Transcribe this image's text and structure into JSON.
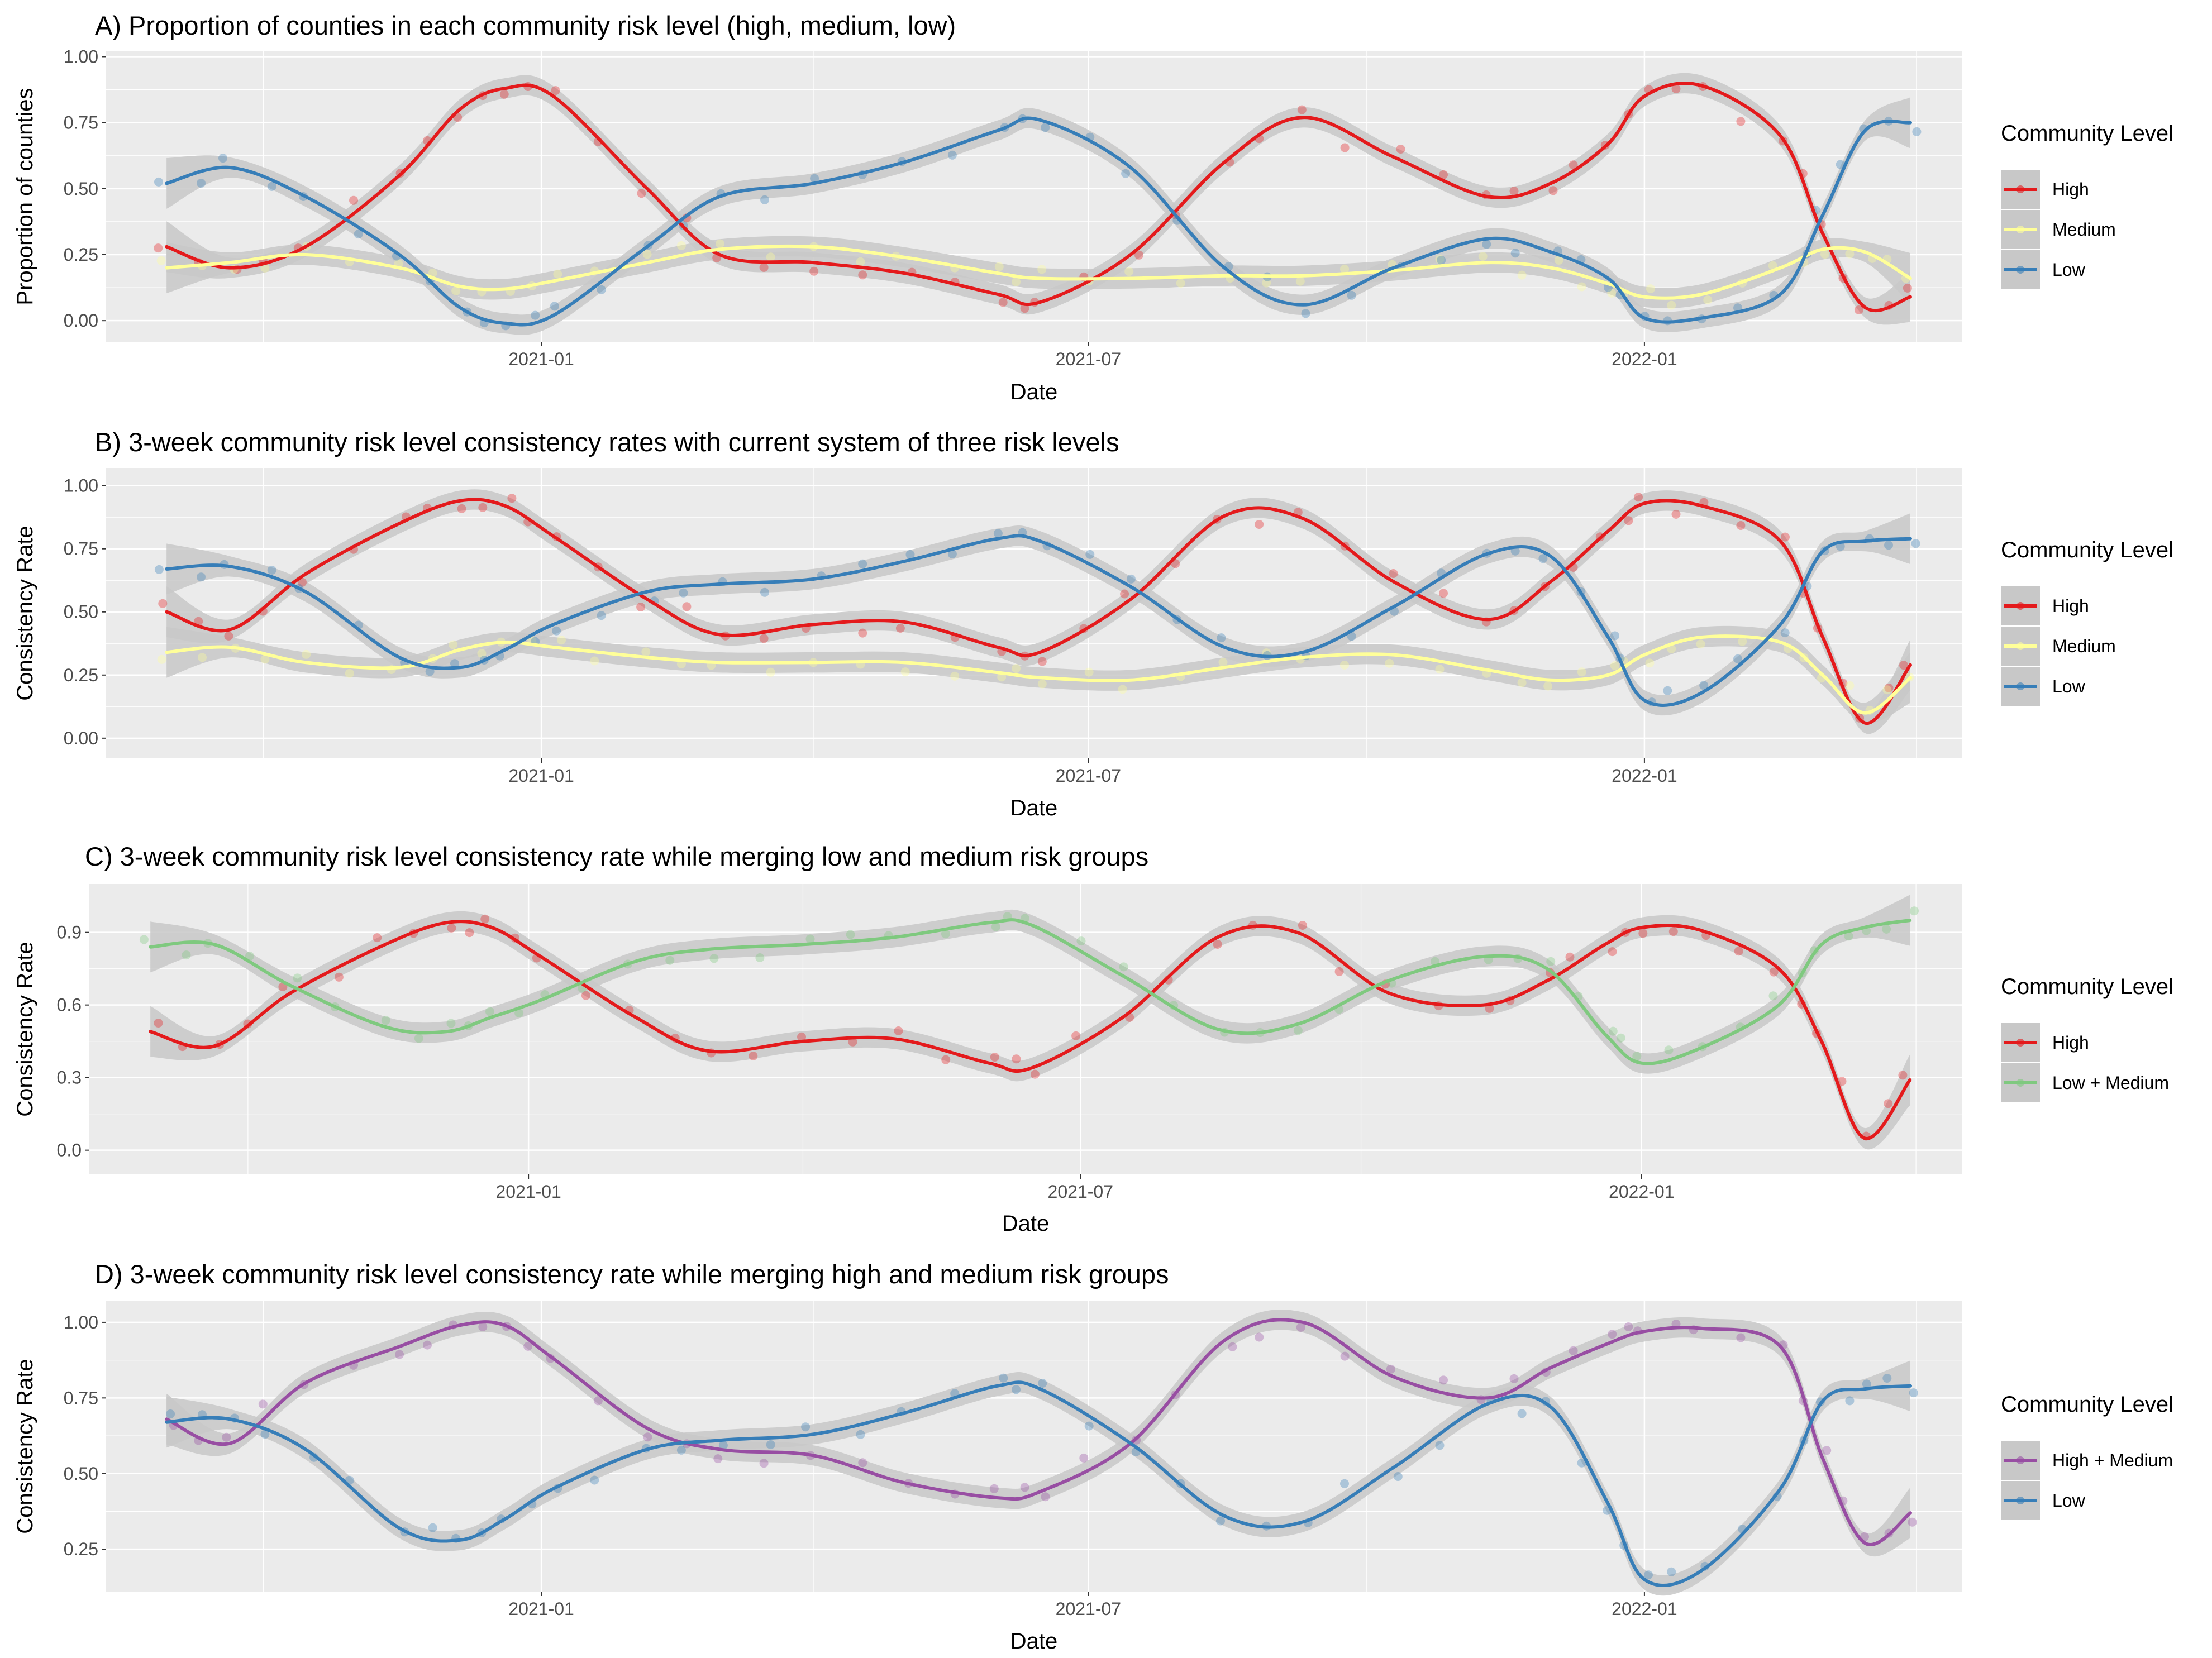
{
  "colors": {
    "High": "#e41a1c",
    "Medium": "#ffff99",
    "Low": "#377eb8",
    "Low + Medium": "#7fc97f",
    "High + Medium": "#984ea3",
    "panel_bg": "#ebebeb",
    "grid": "#ffffff",
    "band": "#c8c8c8"
  },
  "chart_data": [
    {
      "type": "line",
      "title": "A) Proportion of counties in each community risk level (high, medium, low)",
      "xlabel": "Date",
      "ylabel": "Proportion of counties",
      "x_ticks": [
        "2021-01",
        "2021-07",
        "2022-01"
      ],
      "y_ticks": [
        "0.00",
        "0.25",
        "0.50",
        "0.75",
        "1.00"
      ],
      "ylim": [
        -0.08,
        1.02
      ],
      "xlim": [
        "2020-08-10",
        "2022-04-16"
      ],
      "grid": true,
      "legend_title": "Community Level",
      "legend_position": "right",
      "x": [
        "2020-08-30",
        "2020-09-20",
        "2020-10-15",
        "2020-11-15",
        "2020-12-05",
        "2020-12-20",
        "2021-01-05",
        "2021-02-05",
        "2021-03-01",
        "2021-04-01",
        "2021-05-01",
        "2021-06-01",
        "2021-06-15",
        "2021-07-15",
        "2021-08-15",
        "2021-09-10",
        "2021-10-10",
        "2021-11-10",
        "2021-12-01",
        "2021-12-20",
        "2022-01-01",
        "2022-01-20",
        "2022-02-15",
        "2022-03-01",
        "2022-03-15",
        "2022-03-30"
      ],
      "series": [
        {
          "name": "High",
          "values": [
            0.28,
            0.2,
            0.28,
            0.55,
            0.8,
            0.88,
            0.85,
            0.5,
            0.25,
            0.22,
            0.18,
            0.1,
            0.07,
            0.25,
            0.6,
            0.77,
            0.62,
            0.47,
            0.52,
            0.67,
            0.85,
            0.89,
            0.7,
            0.33,
            0.05,
            0.09
          ]
        },
        {
          "name": "Medium",
          "values": [
            0.2,
            0.22,
            0.25,
            0.2,
            0.13,
            0.12,
            0.15,
            0.22,
            0.27,
            0.28,
            0.24,
            0.18,
            0.16,
            0.16,
            0.17,
            0.17,
            0.19,
            0.22,
            0.2,
            0.14,
            0.09,
            0.1,
            0.2,
            0.27,
            0.26,
            0.16
          ]
        },
        {
          "name": "Low",
          "values": [
            0.52,
            0.58,
            0.47,
            0.25,
            0.05,
            -0.01,
            0.02,
            0.28,
            0.47,
            0.52,
            0.6,
            0.72,
            0.76,
            0.58,
            0.2,
            0.06,
            0.2,
            0.31,
            0.26,
            0.16,
            0.01,
            0.01,
            0.1,
            0.4,
            0.72,
            0.75
          ]
        }
      ]
    },
    {
      "type": "line",
      "title": "B) 3-week community risk level consistency rates with current system of three risk levels",
      "xlabel": "Date",
      "ylabel": "Consistency Rate",
      "x_ticks": [
        "2021-01",
        "2021-07",
        "2022-01"
      ],
      "y_ticks": [
        "0.00",
        "0.25",
        "0.50",
        "0.75",
        "1.00"
      ],
      "ylim": [
        -0.08,
        1.07
      ],
      "xlim": [
        "2020-08-10",
        "2022-04-16"
      ],
      "grid": true,
      "legend_title": "Community Level",
      "legend_position": "right",
      "x": [
        "2020-08-30",
        "2020-09-20",
        "2020-10-15",
        "2020-11-15",
        "2020-12-05",
        "2020-12-20",
        "2021-01-05",
        "2021-02-05",
        "2021-03-01",
        "2021-04-01",
        "2021-05-01",
        "2021-06-01",
        "2021-06-15",
        "2021-07-15",
        "2021-08-15",
        "2021-09-10",
        "2021-10-10",
        "2021-11-10",
        "2021-12-01",
        "2021-12-20",
        "2022-01-01",
        "2022-01-20",
        "2022-02-15",
        "2022-03-01",
        "2022-03-15",
        "2022-03-30"
      ],
      "series": [
        {
          "name": "High",
          "values": [
            0.5,
            0.43,
            0.65,
            0.85,
            0.94,
            0.92,
            0.8,
            0.55,
            0.41,
            0.45,
            0.46,
            0.36,
            0.34,
            0.55,
            0.88,
            0.87,
            0.62,
            0.47,
            0.62,
            0.82,
            0.93,
            0.92,
            0.78,
            0.4,
            0.06,
            0.29
          ]
        },
        {
          "name": "Medium",
          "values": [
            0.34,
            0.36,
            0.3,
            0.28,
            0.35,
            0.38,
            0.36,
            0.32,
            0.3,
            0.3,
            0.3,
            0.26,
            0.24,
            0.23,
            0.28,
            0.32,
            0.33,
            0.27,
            0.23,
            0.25,
            0.33,
            0.4,
            0.38,
            0.25,
            0.1,
            0.24
          ]
        },
        {
          "name": "Low",
          "values": [
            0.67,
            0.68,
            0.58,
            0.32,
            0.28,
            0.35,
            0.45,
            0.58,
            0.61,
            0.63,
            0.7,
            0.79,
            0.78,
            0.6,
            0.36,
            0.34,
            0.52,
            0.73,
            0.72,
            0.4,
            0.15,
            0.18,
            0.45,
            0.74,
            0.78,
            0.79
          ]
        }
      ]
    },
    {
      "type": "line",
      "title": "C) 3-week community risk level consistency rate while merging low and medium risk groups",
      "xlabel": "Date",
      "ylabel": "Consistency Rate",
      "x_ticks": [
        "2021-01",
        "2021-07",
        "2022-01"
      ],
      "y_ticks": [
        "0.0",
        "0.3",
        "0.6",
        "0.9"
      ],
      "ylim": [
        -0.1,
        1.1
      ],
      "xlim": [
        "2020-08-10",
        "2022-04-16"
      ],
      "grid": true,
      "legend_title": "Community Level",
      "legend_position": "right",
      "x": [
        "2020-08-30",
        "2020-09-20",
        "2020-10-15",
        "2020-11-15",
        "2020-12-05",
        "2020-12-20",
        "2021-01-05",
        "2021-02-05",
        "2021-03-01",
        "2021-04-01",
        "2021-05-01",
        "2021-06-01",
        "2021-06-15",
        "2021-07-15",
        "2021-08-15",
        "2021-09-10",
        "2021-10-10",
        "2021-11-10",
        "2021-12-01",
        "2021-12-20",
        "2022-01-01",
        "2022-01-20",
        "2022-02-15",
        "2022-03-01",
        "2022-03-15",
        "2022-03-30"
      ],
      "series": [
        {
          "name": "High",
          "values": [
            0.49,
            0.43,
            0.65,
            0.85,
            0.94,
            0.92,
            0.8,
            0.55,
            0.41,
            0.45,
            0.46,
            0.36,
            0.34,
            0.55,
            0.88,
            0.9,
            0.65,
            0.6,
            0.7,
            0.85,
            0.92,
            0.91,
            0.75,
            0.45,
            0.05,
            0.29
          ]
        },
        {
          "name": "Low + Medium",
          "values": [
            0.84,
            0.85,
            0.68,
            0.51,
            0.49,
            0.55,
            0.62,
            0.78,
            0.83,
            0.85,
            0.88,
            0.94,
            0.93,
            0.72,
            0.5,
            0.52,
            0.7,
            0.8,
            0.75,
            0.48,
            0.36,
            0.42,
            0.6,
            0.85,
            0.92,
            0.95
          ]
        }
      ]
    },
    {
      "type": "line",
      "title": "D) 3-week community risk level consistency rate while merging high and medium risk groups",
      "xlabel": "Date",
      "ylabel": "Consistency Rate",
      "x_ticks": [
        "2021-01",
        "2021-07",
        "2022-01"
      ],
      "y_ticks": [
        "0.25",
        "0.50",
        "0.75",
        "1.00"
      ],
      "ylim": [
        0.11,
        1.07
      ],
      "xlim": [
        "2020-08-10",
        "2022-04-16"
      ],
      "grid": true,
      "legend_title": "Community Level",
      "legend_position": "right",
      "x": [
        "2020-08-30",
        "2020-09-20",
        "2020-10-15",
        "2020-11-15",
        "2020-12-05",
        "2020-12-20",
        "2021-01-05",
        "2021-02-05",
        "2021-03-01",
        "2021-04-01",
        "2021-05-01",
        "2021-06-01",
        "2021-06-15",
        "2021-07-15",
        "2021-08-15",
        "2021-09-10",
        "2021-10-10",
        "2021-11-10",
        "2021-12-01",
        "2021-12-20",
        "2022-01-01",
        "2022-01-20",
        "2022-02-15",
        "2022-03-01",
        "2022-03-15",
        "2022-03-30"
      ],
      "series": [
        {
          "name": "High + Medium",
          "values": [
            0.68,
            0.6,
            0.8,
            0.92,
            0.99,
            0.99,
            0.88,
            0.65,
            0.58,
            0.56,
            0.47,
            0.42,
            0.44,
            0.6,
            0.94,
            1.0,
            0.82,
            0.75,
            0.85,
            0.93,
            0.97,
            0.98,
            0.92,
            0.55,
            0.27,
            0.37
          ]
        },
        {
          "name": "Low",
          "values": [
            0.67,
            0.68,
            0.58,
            0.32,
            0.28,
            0.35,
            0.45,
            0.58,
            0.61,
            0.63,
            0.7,
            0.79,
            0.78,
            0.6,
            0.36,
            0.34,
            0.52,
            0.73,
            0.72,
            0.4,
            0.15,
            0.18,
            0.45,
            0.74,
            0.78,
            0.79
          ]
        }
      ]
    }
  ]
}
